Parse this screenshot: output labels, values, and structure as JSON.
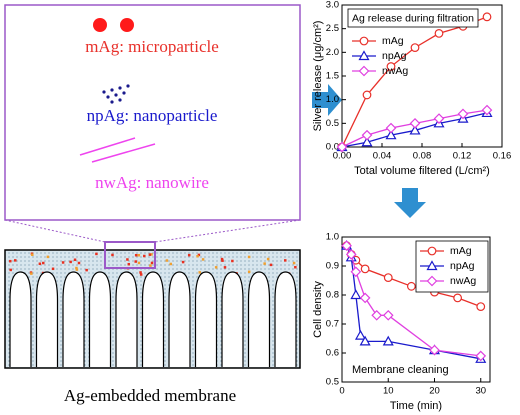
{
  "diagram": {
    "labels": [
      "mAg: microparticle",
      "npAg: nanoparticle",
      "nwAg: nanowire"
    ],
    "caption": "Ag-embedded membrane"
  },
  "chart_data": [
    {
      "type": "line",
      "title": "Ag release during filtration",
      "x_label": "Total volume filtered (L/cm²)",
      "y_label": "Silver release (μg/cm²)",
      "xlim": [
        0,
        0.16
      ],
      "xticks": [
        {
          "value": 0,
          "label": "0.00"
        },
        0.04,
        0.08,
        0.12,
        0.16
      ],
      "ylim": [
        0,
        3
      ],
      "yticks": [
        {
          "value": 0,
          "label": "0.0"
        },
        0.5,
        {
          "value": 1,
          "label": "1.0"
        },
        1.5,
        {
          "value": 2,
          "label": "2.0"
        },
        2.5,
        {
          "value": 3,
          "label": "3.0"
        }
      ],
      "legend": "upper left",
      "series": [
        {
          "name": "mAg",
          "color": "#e8302a",
          "marker": "circle",
          "x": [
            0,
            0.025,
            0.049,
            0.073,
            0.097,
            0.121,
            0.145
          ],
          "values": [
            0,
            1.1,
            1.7,
            2.1,
            2.4,
            2.55,
            2.75
          ]
        },
        {
          "name": "npAg",
          "color": "#1a1acc",
          "marker": "triangle",
          "x": [
            0,
            0.025,
            0.049,
            0.073,
            0.097,
            0.121,
            0.145
          ],
          "values": [
            0,
            0.1,
            0.25,
            0.35,
            0.5,
            0.6,
            0.72
          ]
        },
        {
          "name": "nwAg",
          "color": "#e040e0",
          "marker": "diamond",
          "x": [
            0,
            0.025,
            0.049,
            0.073,
            0.097,
            0.121,
            0.145
          ],
          "values": [
            0,
            0.25,
            0.4,
            0.5,
            0.6,
            0.7,
            0.78
          ]
        }
      ]
    },
    {
      "type": "line",
      "annotation": "Membrane cleaning",
      "x_label": "Time (min)",
      "y_label": "Cell density",
      "xlim": [
        0,
        32
      ],
      "xticks": [
        0,
        10,
        20,
        30
      ],
      "ylim": [
        0.5,
        1
      ],
      "yticks": [
        0.5,
        0.6,
        0.7,
        0.8,
        0.9,
        {
          "value": 1,
          "label": "1.0"
        }
      ],
      "legend": "upper right",
      "series": [
        {
          "name": "mAg",
          "color": "#e8302a",
          "marker": "circle",
          "x": [
            1,
            2,
            3,
            5,
            10,
            15,
            20,
            25,
            30
          ],
          "values": [
            0.97,
            0.94,
            0.92,
            0.89,
            0.86,
            0.83,
            0.81,
            0.79,
            0.76
          ]
        },
        {
          "name": "npAg",
          "color": "#1a1acc",
          "marker": "triangle",
          "x": [
            1,
            2,
            3,
            4,
            5,
            10,
            20,
            30
          ],
          "values": [
            0.97,
            0.93,
            0.8,
            0.66,
            0.64,
            0.64,
            0.61,
            0.58
          ]
        },
        {
          "name": "nwAg",
          "color": "#e040e0",
          "marker": "diamond",
          "x": [
            1,
            2,
            3,
            5,
            7.5,
            10,
            20,
            30
          ],
          "values": [
            0.97,
            0.94,
            0.88,
            0.79,
            0.73,
            0.73,
            0.61,
            0.59
          ]
        }
      ]
    }
  ]
}
